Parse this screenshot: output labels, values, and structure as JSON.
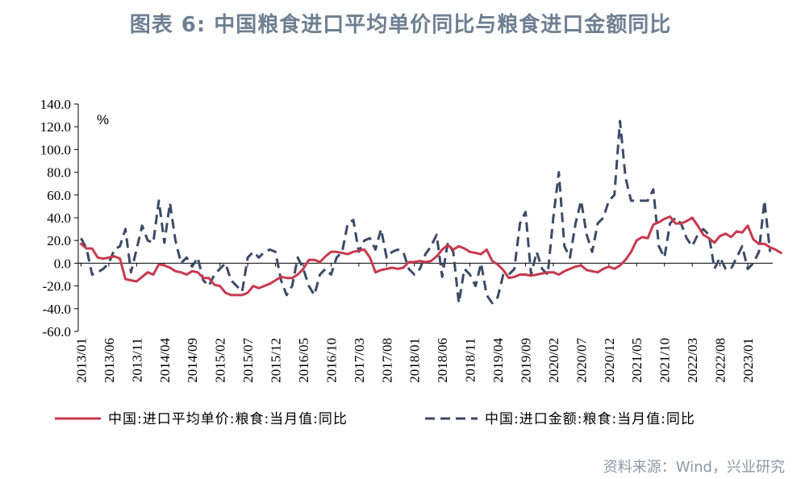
{
  "title": "图表 6:   中国粮食进口平均单价同比与粮食进口金额同比",
  "source": "资料来源：Wind，兴业研究",
  "colors": {
    "series1": "#C8394E",
    "series2": "#3B4A66",
    "title": "#6E7F92",
    "source": "#8C98A6"
  },
  "chart_data": {
    "type": "line",
    "ylabel": "%",
    "ylim": [
      -60,
      140
    ],
    "yticks": [
      "140.0",
      "120.0",
      "100.0",
      "80.0",
      "60.0",
      "40.0",
      "20.0",
      "0.0",
      "-20.0",
      "-40.0",
      "-60.0"
    ],
    "xticks": [
      "2013/01",
      "2013/06",
      "2013/11",
      "2014/04",
      "2014/09",
      "2015/02",
      "2015/07",
      "2015/12",
      "2016/05",
      "2016/10",
      "2017/03",
      "2017/08",
      "2018/01",
      "2018/06",
      "2018/11",
      "2019/04",
      "2019/09",
      "2020/02",
      "2020/07",
      "2020/12",
      "2021/05",
      "2021/10",
      "2022/03",
      "2022/08",
      "2023/01"
    ],
    "x_start": "2013/01",
    "x_end": "2023/05",
    "legend_position": "bottom",
    "series": [
      {
        "name": "中国:进口平均单价:粮食:当月值:同比",
        "style": "solid",
        "values": [
          17,
          13,
          13,
          5,
          4,
          5,
          6,
          4,
          -14,
          -15,
          -16,
          -12,
          -8,
          -10,
          -1,
          -2,
          -4,
          -7,
          -8,
          -10,
          -7,
          -8,
          -13,
          -13,
          -19,
          -20,
          -26,
          -28,
          -28,
          -28,
          -26,
          -20,
          -22,
          -20,
          -18,
          -15,
          -12,
          -13,
          -13,
          -10,
          -5,
          3,
          3,
          1,
          6,
          10,
          10,
          9,
          8,
          10,
          11,
          12,
          5,
          -8,
          -6,
          -5,
          -4,
          -5,
          -4,
          1,
          1,
          2,
          1,
          2,
          6,
          12,
          16,
          12,
          15,
          13,
          10,
          9,
          8,
          12,
          2,
          -1,
          -6,
          -13,
          -12,
          -10,
          -10,
          -11,
          -10,
          -9,
          -8,
          -8,
          -10,
          -7,
          -5,
          -3,
          -2,
          -6,
          -7,
          -8,
          -5,
          -3,
          -5,
          -2,
          3,
          10,
          20,
          23,
          22,
          34,
          36,
          39,
          41,
          35,
          35,
          37,
          40,
          33,
          25,
          22,
          18,
          24,
          26,
          23,
          28,
          27,
          33,
          21,
          17,
          17,
          14,
          12,
          9
        ]
      },
      {
        "name": "中国:进口金额:粮食:当月值:同比",
        "style": "dashed",
        "values": [
          22,
          13,
          -10,
          -8,
          -5,
          0,
          12,
          15,
          30,
          -8,
          12,
          33,
          20,
          18,
          55,
          18,
          53,
          20,
          0,
          5,
          -3,
          5,
          -15,
          -20,
          -10,
          -5,
          0,
          -15,
          -20,
          -25,
          5,
          10,
          5,
          10,
          12,
          10,
          -15,
          -28,
          -20,
          5,
          -5,
          -20,
          -28,
          -10,
          -5,
          -10,
          5,
          10,
          35,
          38,
          10,
          20,
          22,
          12,
          30,
          5,
          10,
          12,
          10,
          -5,
          -10,
          -5,
          8,
          15,
          25,
          -12,
          18,
          10,
          -35,
          -5,
          -10,
          -20,
          0,
          -28,
          -35,
          -30,
          -10,
          -10,
          -5,
          35,
          45,
          -10,
          10,
          -5,
          -10,
          40,
          80,
          15,
          5,
          35,
          55,
          25,
          10,
          35,
          40,
          55,
          60,
          125,
          75,
          55,
          55,
          55,
          55,
          65,
          15,
          5,
          35,
          40,
          35,
          22,
          15,
          25,
          30,
          25,
          -5,
          5,
          -5,
          -5,
          5,
          15,
          -5,
          0,
          10,
          55,
          10
        ]
      }
    ]
  }
}
